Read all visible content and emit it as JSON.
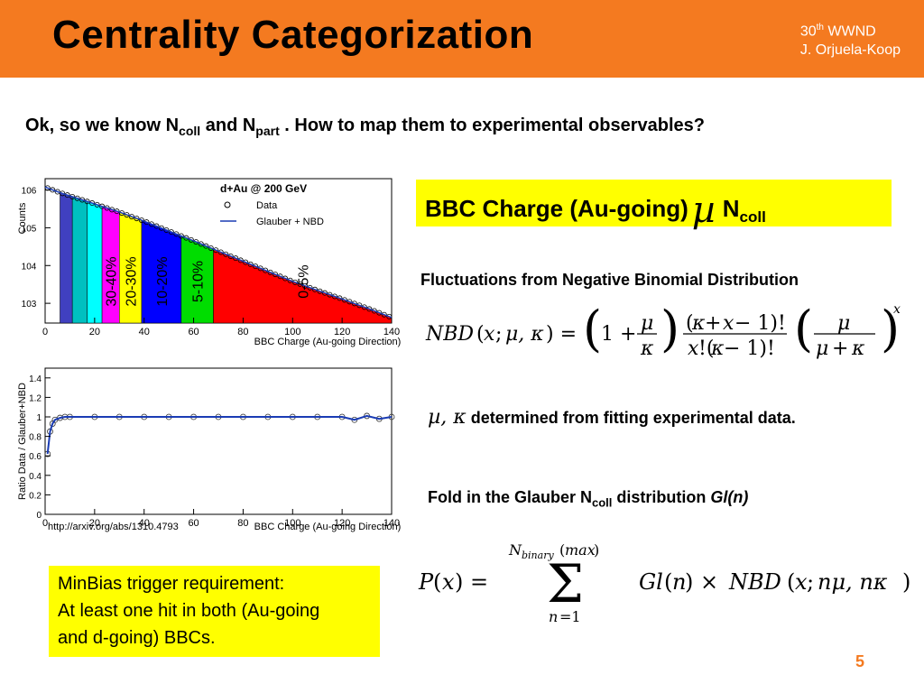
{
  "header": {
    "title": "Centrality Categorization",
    "meta_sup_base": "30",
    "meta_sup": "th",
    "meta_line1_rest": " WWND",
    "meta_line2": "J. Orjuela-Koop"
  },
  "question": {
    "part1": "Ok, so we know N",
    "sub1": "coll",
    "part2": " and  N",
    "sub2": "part",
    "part3": " . How to map them to experimental observables?"
  },
  "bbc": {
    "text": "BBC Charge (Au-going)",
    "symbol": "µ",
    "n": "N",
    "sub": "coll"
  },
  "fluct": "Fluctuations from Negative Binomial Distribution",
  "mk": {
    "greek": "µ, κ",
    "text": " determined from fitting experimental data."
  },
  "fold": {
    "part1": "Fold in the Glauber N",
    "sub": "coll",
    "part2": " distribution ",
    "ital": "Gl(n)"
  },
  "minbias": {
    "line1": "MinBias trigger requirement:",
    "line2": "At least one hit in both (Au-going",
    "line3": "and d-going) BBCs."
  },
  "arxiv": "http://arxiv.org/abs/1310.4793",
  "page_number": "5",
  "colors": {
    "header": "#f47a20",
    "highlight": "#ffff00"
  },
  "chart_data": [
    {
      "type": "scatter",
      "title": "d+Au @ 200 GeV",
      "xlabel": "BBC Charge (Au-going Direction)",
      "ylabel": "Counts",
      "yscale": "log",
      "xlim": [
        0,
        140
      ],
      "ylim": [
        300,
        2000000
      ],
      "xticks": [
        "0",
        "20",
        "40",
        "60",
        "80",
        "100",
        "120",
        "140"
      ],
      "yticks": [
        "10^3",
        "10^4",
        "10^5",
        "10^6"
      ],
      "legend": [
        "Data",
        "Glauber + NBD"
      ],
      "legend_position": "top-right",
      "centrality_bins": [
        {
          "label": "30-40%",
          "color": "#ff00ff",
          "x": [
            23,
            30
          ]
        },
        {
          "label": "20-30%",
          "color": "#ffff00",
          "x": [
            30,
            39
          ]
        },
        {
          "label": "10-20%",
          "color": "#0000ff",
          "x": [
            39,
            55
          ]
        },
        {
          "label": "5-10%",
          "color": "#00dd00",
          "x": [
            55,
            68
          ]
        },
        {
          "label": "0-5%",
          "color": "#ff0000",
          "x": [
            68,
            140
          ]
        }
      ],
      "other_bins": [
        {
          "color": "#4040c0",
          "x": [
            6,
            11
          ]
        },
        {
          "color": "#00c0c0",
          "x": [
            11,
            17
          ]
        },
        {
          "color": "#00ffff",
          "x": [
            17,
            23
          ]
        }
      ],
      "points": {
        "x": [
          0,
          5,
          10,
          20,
          30,
          40,
          50,
          60,
          70,
          80,
          90,
          100,
          110,
          120,
          130,
          140
        ],
        "y": [
          1200000,
          900000,
          700000,
          430000,
          260000,
          150000,
          82000,
          45000,
          24000,
          13000,
          7000,
          3800,
          2200,
          1300,
          750,
          420
        ]
      }
    },
    {
      "type": "scatter",
      "xlabel": "BBC Charge (Au-going Direction)",
      "ylabel": "Ratio Data / Glauber+NBD",
      "xlim": [
        0,
        140
      ],
      "ylim": [
        0,
        1.5
      ],
      "xticks": [
        "0",
        "20",
        "40",
        "60",
        "80",
        "100",
        "120",
        "140"
      ],
      "yticks": [
        "0",
        "0.2",
        "0.4",
        "0.6",
        "0.8",
        "1",
        "1.2",
        "1.4"
      ],
      "points": {
        "x": [
          1,
          2,
          3,
          4,
          6,
          8,
          10,
          20,
          30,
          40,
          50,
          60,
          70,
          80,
          90,
          100,
          110,
          120,
          125,
          130,
          135,
          140
        ],
        "y": [
          0.62,
          0.85,
          0.93,
          0.97,
          0.99,
          1.0,
          1.0,
          1.0,
          1.0,
          1.0,
          1.0,
          1.0,
          1.0,
          1.0,
          1.0,
          1.0,
          1.0,
          1.0,
          0.97,
          1.01,
          0.98,
          1.0
        ]
      }
    }
  ]
}
